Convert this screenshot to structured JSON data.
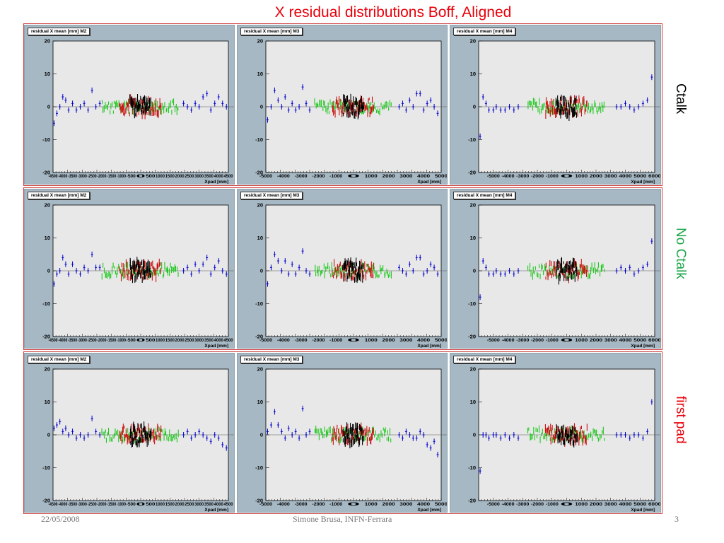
{
  "slide": {
    "title": "X  residual distributions Boff, Aligned",
    "footer_date": "22/05/2008",
    "footer_author": "Simone Brusa, INFN-Ferrara",
    "page_number": "3"
  },
  "rows": [
    {
      "label": "Ctalk",
      "label_color": "#000000"
    },
    {
      "label": "No Ctalk",
      "label_color": "#1fa64a"
    },
    {
      "label": "first pad",
      "label_color": "#e8000a"
    }
  ],
  "series_colors": {
    "outer": "#0000cc",
    "mid": "#1ec81e",
    "inner": "#cc1111",
    "core": "#000000"
  },
  "chart_data": [
    {
      "row": 0,
      "col": 0,
      "type": "scatter",
      "title": "residual X mean [mm] M2",
      "xlabel": "Xpad [mm]",
      "ylabel": "",
      "xlim": [
        -4500,
        4500
      ],
      "ylim": [
        -20,
        20
      ],
      "yticks": [
        "20",
        "10",
        "0",
        "-10",
        "-20"
      ],
      "xticks": [
        "-4500",
        "-4000",
        "-3500",
        "-3000",
        "-2500",
        "-2000",
        "-1500",
        "-1000",
        "-500",
        "0",
        "500",
        "1000",
        "1500",
        "2000",
        "2500",
        "3000",
        "3500",
        "4000",
        "4500"
      ],
      "grid": false,
      "outer_points": [
        [
          -4450,
          -5
        ],
        [
          -4300,
          -2
        ],
        [
          -4150,
          0
        ],
        [
          -4000,
          3
        ],
        [
          -3850,
          2
        ],
        [
          -3700,
          -1
        ],
        [
          -3500,
          1
        ],
        [
          -3300,
          -1
        ],
        [
          -3100,
          0
        ],
        [
          -2900,
          1
        ],
        [
          -2700,
          -1
        ],
        [
          -2500,
          5
        ],
        [
          -2300,
          0
        ],
        [
          -2100,
          1
        ],
        [
          2200,
          1
        ],
        [
          2400,
          0
        ],
        [
          2600,
          -1
        ],
        [
          2800,
          1
        ],
        [
          3000,
          0
        ],
        [
          3200,
          3
        ],
        [
          3400,
          4
        ],
        [
          3600,
          -1
        ],
        [
          3800,
          1
        ],
        [
          4000,
          3
        ],
        [
          4200,
          1
        ],
        [
          4400,
          0
        ]
      ],
      "seed": 11
    },
    {
      "row": 0,
      "col": 1,
      "type": "scatter",
      "title": "residual X mean [mm] M3",
      "xlabel": "Xpad [mm]",
      "ylabel": "",
      "xlim": [
        -5000,
        5000
      ],
      "ylim": [
        -20,
        20
      ],
      "yticks": [
        "20",
        "10",
        "0",
        "-10",
        "-20"
      ],
      "xticks": [
        "-5000",
        "-4000",
        "-3000",
        "-2000",
        "-1000",
        "0",
        "1000",
        "2000",
        "3000",
        "4000",
        "5000"
      ],
      "grid": false,
      "outer_points": [
        [
          -4900,
          -4
        ],
        [
          -4700,
          0
        ],
        [
          -4500,
          5
        ],
        [
          -4300,
          2
        ],
        [
          -4100,
          0
        ],
        [
          -3900,
          3
        ],
        [
          -3700,
          -1
        ],
        [
          -3500,
          1
        ],
        [
          -3300,
          -1
        ],
        [
          -3100,
          0
        ],
        [
          -2900,
          6
        ],
        [
          -2700,
          1
        ],
        [
          -2500,
          -1
        ],
        [
          2600,
          0
        ],
        [
          2800,
          1
        ],
        [
          3000,
          -1
        ],
        [
          3200,
          2
        ],
        [
          3400,
          0
        ],
        [
          3600,
          4
        ],
        [
          3800,
          4
        ],
        [
          4000,
          -1
        ],
        [
          4200,
          1
        ],
        [
          4400,
          2
        ],
        [
          4600,
          0
        ],
        [
          4800,
          -2
        ]
      ],
      "seed": 23
    },
    {
      "row": 0,
      "col": 2,
      "type": "scatter",
      "title": "residual X mean [mm] M4",
      "xlabel": "Xpad [mm]",
      "ylabel": "",
      "xlim": [
        -6000,
        6000
      ],
      "ylim": [
        -20,
        20
      ],
      "yticks": [
        "20",
        "10",
        "0",
        "-10",
        "-20"
      ],
      "xticks": [
        "-5000",
        "-4000",
        "-3000",
        "-2000",
        "-1000",
        "0",
        "1000",
        "2000",
        "3000",
        "4000",
        "5000",
        "6000"
      ],
      "grid": false,
      "outer_points": [
        [
          -5900,
          -9
        ],
        [
          -5700,
          3
        ],
        [
          -5500,
          1
        ],
        [
          -5300,
          -1
        ],
        [
          -5000,
          -1
        ],
        [
          -4800,
          0
        ],
        [
          -4500,
          -1
        ],
        [
          -4200,
          -1
        ],
        [
          -3900,
          0
        ],
        [
          -3600,
          -1
        ],
        [
          -3300,
          0
        ],
        [
          3400,
          0
        ],
        [
          3700,
          0
        ],
        [
          4000,
          1
        ],
        [
          4300,
          0
        ],
        [
          4600,
          -1
        ],
        [
          4900,
          0
        ],
        [
          5200,
          1
        ],
        [
          5500,
          2
        ],
        [
          5800,
          9
        ]
      ],
      "seed": 37
    },
    {
      "row": 1,
      "col": 0,
      "type": "scatter",
      "title": "residual X mean [mm] M2",
      "xlabel": "Xpad [mm]",
      "ylabel": "",
      "xlim": [
        -4500,
        4500
      ],
      "ylim": [
        -20,
        20
      ],
      "yticks": [
        "20",
        "10",
        "0",
        "-10",
        "-20"
      ],
      "xticks": [
        "-4500",
        "-4000",
        "-3500",
        "-3000",
        "-2500",
        "-2000",
        "-1500",
        "-1000",
        "-500",
        "0",
        "500",
        "1000",
        "1500",
        "2000",
        "2500",
        "3000",
        "3500",
        "4000",
        "4500"
      ],
      "grid": false,
      "outer_points": [
        [
          -4450,
          -4
        ],
        [
          -4300,
          -1
        ],
        [
          -4150,
          0
        ],
        [
          -4000,
          4
        ],
        [
          -3850,
          2
        ],
        [
          -3700,
          -1
        ],
        [
          -3500,
          2
        ],
        [
          -3300,
          0
        ],
        [
          -3100,
          -1
        ],
        [
          -2900,
          1
        ],
        [
          -2700,
          0
        ],
        [
          -2500,
          5
        ],
        [
          -2300,
          1
        ],
        [
          -2100,
          1
        ],
        [
          2200,
          0
        ],
        [
          2400,
          1
        ],
        [
          2600,
          -1
        ],
        [
          2800,
          2
        ],
        [
          3000,
          0
        ],
        [
          3200,
          2
        ],
        [
          3400,
          4
        ],
        [
          3600,
          -1
        ],
        [
          3800,
          1
        ],
        [
          4000,
          3
        ],
        [
          4200,
          0
        ],
        [
          4400,
          -1
        ]
      ],
      "seed": 53
    },
    {
      "row": 1,
      "col": 1,
      "type": "scatter",
      "title": "residual X mean [mm] M3",
      "xlabel": "Xpad [mm]",
      "ylabel": "",
      "xlim": [
        -5000,
        5000
      ],
      "ylim": [
        -20,
        20
      ],
      "yticks": [
        "20",
        "10",
        "0",
        "-10",
        "-20"
      ],
      "xticks": [
        "-5000",
        "-4000",
        "-3000",
        "-2000",
        "-1000",
        "0",
        "1000",
        "2000",
        "3000",
        "4000",
        "5000"
      ],
      "grid": false,
      "outer_points": [
        [
          -4900,
          -4
        ],
        [
          -4700,
          1
        ],
        [
          -4500,
          5
        ],
        [
          -4300,
          3
        ],
        [
          -4100,
          0
        ],
        [
          -3900,
          3
        ],
        [
          -3700,
          -1
        ],
        [
          -3500,
          2
        ],
        [
          -3300,
          -1
        ],
        [
          -3100,
          1
        ],
        [
          -2900,
          6
        ],
        [
          -2700,
          0
        ],
        [
          -2500,
          -1
        ],
        [
          2600,
          1
        ],
        [
          2800,
          0
        ],
        [
          3000,
          -1
        ],
        [
          3200,
          2
        ],
        [
          3400,
          0
        ],
        [
          3600,
          4
        ],
        [
          3800,
          4
        ],
        [
          4000,
          -1
        ],
        [
          4200,
          0
        ],
        [
          4400,
          2
        ],
        [
          4600,
          1
        ],
        [
          4800,
          -1
        ]
      ],
      "seed": 67
    },
    {
      "row": 1,
      "col": 2,
      "type": "scatter",
      "title": "residual X mean [mm] M4",
      "xlabel": "Xpad [mm]",
      "ylabel": "",
      "xlim": [
        -6000,
        6000
      ],
      "ylim": [
        -20,
        20
      ],
      "yticks": [
        "20",
        "10",
        "0",
        "-10",
        "-20"
      ],
      "xticks": [
        "-5000",
        "-4000",
        "-3000",
        "-2000",
        "-1000",
        "0",
        "1000",
        "2000",
        "3000",
        "4000",
        "5000",
        "6000"
      ],
      "grid": false,
      "outer_points": [
        [
          -5900,
          -8
        ],
        [
          -5700,
          3
        ],
        [
          -5500,
          1
        ],
        [
          -5300,
          -1
        ],
        [
          -5000,
          -1
        ],
        [
          -4800,
          0
        ],
        [
          -4500,
          -1
        ],
        [
          -4200,
          -1
        ],
        [
          -3900,
          0
        ],
        [
          -3600,
          -1
        ],
        [
          -3300,
          0
        ],
        [
          3400,
          0
        ],
        [
          3700,
          1
        ],
        [
          4000,
          0
        ],
        [
          4300,
          1
        ],
        [
          4600,
          -1
        ],
        [
          4900,
          0
        ],
        [
          5200,
          1
        ],
        [
          5500,
          2
        ],
        [
          5800,
          9
        ]
      ],
      "seed": 79
    },
    {
      "row": 2,
      "col": 0,
      "type": "scatter",
      "title": "residual X mean [mm] M2",
      "xlabel": "Xpad [mm]",
      "ylabel": "",
      "xlim": [
        -4500,
        4500
      ],
      "ylim": [
        -20,
        20
      ],
      "yticks": [
        "20",
        "10",
        "0",
        "-10",
        "-20"
      ],
      "xticks": [
        "-4500",
        "-4000",
        "-3500",
        "-3000",
        "-2500",
        "-2000",
        "-1500",
        "-1000",
        "-500",
        "0",
        "500",
        "1000",
        "1500",
        "2000",
        "2500",
        "3000",
        "3500",
        "4000",
        "4500"
      ],
      "grid": false,
      "outer_points": [
        [
          -4450,
          2
        ],
        [
          -4300,
          3
        ],
        [
          -4150,
          4
        ],
        [
          -4000,
          1
        ],
        [
          -3850,
          2
        ],
        [
          -3700,
          0
        ],
        [
          -3500,
          1
        ],
        [
          -3300,
          -1
        ],
        [
          -3100,
          0
        ],
        [
          -2900,
          -1
        ],
        [
          -2700,
          0
        ],
        [
          -2500,
          5
        ],
        [
          -2300,
          1
        ],
        [
          -2100,
          0
        ],
        [
          2200,
          0
        ],
        [
          2400,
          1
        ],
        [
          2600,
          -1
        ],
        [
          2800,
          0
        ],
        [
          3000,
          1
        ],
        [
          3200,
          0
        ],
        [
          3400,
          -1
        ],
        [
          3600,
          -2
        ],
        [
          3800,
          0
        ],
        [
          4000,
          -1
        ],
        [
          4200,
          -3
        ],
        [
          4400,
          -4
        ]
      ],
      "seed": 97
    },
    {
      "row": 2,
      "col": 1,
      "type": "scatter",
      "title": "residual X mean [mm] M3",
      "xlabel": "Xpad [mm]",
      "ylabel": "",
      "xlim": [
        -5000,
        5000
      ],
      "ylim": [
        -20,
        20
      ],
      "yticks": [
        "20",
        "10",
        "0",
        "-10",
        "-20"
      ],
      "xticks": [
        "-5000",
        "-4000",
        "-3000",
        "-2000",
        "-1000",
        "0",
        "1000",
        "2000",
        "3000",
        "4000",
        "5000"
      ],
      "grid": false,
      "outer_points": [
        [
          -4900,
          1
        ],
        [
          -4700,
          3
        ],
        [
          -4500,
          7
        ],
        [
          -4300,
          3
        ],
        [
          -4100,
          1
        ],
        [
          -3900,
          -1
        ],
        [
          -3700,
          2
        ],
        [
          -3500,
          0
        ],
        [
          -3300,
          1
        ],
        [
          -3100,
          -1
        ],
        [
          -2900,
          8
        ],
        [
          -2700,
          0
        ],
        [
          -2500,
          1
        ],
        [
          2600,
          0
        ],
        [
          2800,
          -1
        ],
        [
          3000,
          1
        ],
        [
          3200,
          0
        ],
        [
          3400,
          -1
        ],
        [
          3600,
          -1
        ],
        [
          3800,
          1
        ],
        [
          4000,
          0
        ],
        [
          4200,
          -3
        ],
        [
          4400,
          -4
        ],
        [
          4600,
          -2
        ],
        [
          4800,
          -6
        ]
      ],
      "seed": 109
    },
    {
      "row": 2,
      "col": 2,
      "type": "scatter",
      "title": "residual X mean [mm] M4",
      "xlabel": "Xpad [mm]",
      "ylabel": "",
      "xlim": [
        -6000,
        6000
      ],
      "ylim": [
        -20,
        20
      ],
      "yticks": [
        "20",
        "10",
        "0",
        "-10",
        "-20"
      ],
      "xticks": [
        "-5000",
        "-4000",
        "-3000",
        "-2000",
        "-1000",
        "0",
        "1000",
        "2000",
        "3000",
        "4000",
        "5000",
        "6000"
      ],
      "grid": false,
      "outer_points": [
        [
          -5900,
          -11
        ],
        [
          -5700,
          0
        ],
        [
          -5500,
          0
        ],
        [
          -5300,
          -1
        ],
        [
          -5000,
          0
        ],
        [
          -4800,
          0
        ],
        [
          -4500,
          -1
        ],
        [
          -4200,
          0
        ],
        [
          -3900,
          -1
        ],
        [
          -3600,
          0
        ],
        [
          -3300,
          -1
        ],
        [
          3400,
          0
        ],
        [
          3700,
          0
        ],
        [
          4000,
          0
        ],
        [
          4300,
          -1
        ],
        [
          4600,
          0
        ],
        [
          4900,
          0
        ],
        [
          5200,
          -1
        ],
        [
          5500,
          1
        ],
        [
          5800,
          10
        ]
      ],
      "seed": 127
    }
  ]
}
